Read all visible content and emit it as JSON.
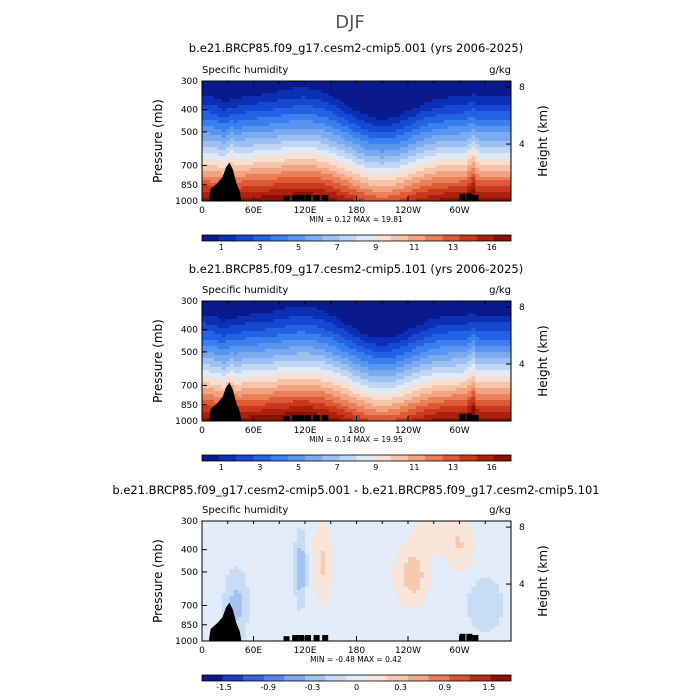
{
  "figure": {
    "title": "DJF"
  },
  "chart_data": [
    {
      "type": "heatmap",
      "title": "b.e21.BRCP85.f09_g17.cesm2-cmip5.001 (yrs 2006-2025)",
      "variable": "Specific humidity",
      "units": "g/kg",
      "xlabel": "",
      "ylabel": "Pressure (mb)",
      "ylabel_right": "Height (km)",
      "x_ticks": [
        "0",
        "60E",
        "120E",
        "180",
        "120W",
        "60W"
      ],
      "x_tick_values": [
        0,
        60,
        120,
        180,
        240,
        300
      ],
      "xlim": [
        0,
        360
      ],
      "y_ticks": [
        "300",
        "400",
        "500",
        "700",
        "850",
        "1000"
      ],
      "y_tick_values": [
        300,
        400,
        500,
        700,
        850,
        1000
      ],
      "ylim": [
        1000,
        300
      ],
      "y_scale": "log",
      "height_ticks": [
        "8",
        "4"
      ],
      "height_tick_values": [
        8,
        4
      ],
      "min_label": "MIN =",
      "min_value": "0.12",
      "max_label": "MAX =",
      "max_value": "19.81",
      "colorbar_labels": [
        "1",
        "3",
        "5",
        "7",
        "9",
        "11",
        "13",
        "16"
      ],
      "colorbar_colors": [
        "#0a1a8c",
        "#0c30b4",
        "#1748d2",
        "#2462e4",
        "#3a7ef0",
        "#5894f0",
        "#7aaaf0",
        "#9cc0f2",
        "#c0d6f4",
        "#e0eaf6",
        "#f7e0d2",
        "#f6c4aa",
        "#f2a480",
        "#ea8058",
        "#de5a36",
        "#c8381c",
        "#ac200c",
        "#8a1004"
      ]
    },
    {
      "type": "heatmap",
      "title": "b.e21.BRCP85.f09_g17.cesm2-cmip5.101 (yrs 2006-2025)",
      "variable": "Specific humidity",
      "units": "g/kg",
      "xlabel": "",
      "ylabel": "Pressure (mb)",
      "ylabel_right": "Height (km)",
      "x_ticks": [
        "0",
        "60E",
        "120E",
        "180",
        "120W",
        "60W"
      ],
      "x_tick_values": [
        0,
        60,
        120,
        180,
        240,
        300
      ],
      "xlim": [
        0,
        360
      ],
      "y_ticks": [
        "300",
        "400",
        "500",
        "700",
        "850",
        "1000"
      ],
      "y_tick_values": [
        300,
        400,
        500,
        700,
        850,
        1000
      ],
      "ylim": [
        1000,
        300
      ],
      "y_scale": "log",
      "height_ticks": [
        "8",
        "4"
      ],
      "height_tick_values": [
        8,
        4
      ],
      "min_label": "MIN =",
      "min_value": "0.14",
      "max_label": "MAX =",
      "max_value": "19.95",
      "colorbar_labels": [
        "1",
        "3",
        "5",
        "7",
        "9",
        "11",
        "13",
        "16"
      ],
      "colorbar_colors": [
        "#0a1a8c",
        "#0c30b4",
        "#1748d2",
        "#2462e4",
        "#3a7ef0",
        "#5894f0",
        "#7aaaf0",
        "#9cc0f2",
        "#c0d6f4",
        "#e0eaf6",
        "#f7e0d2",
        "#f6c4aa",
        "#f2a480",
        "#ea8058",
        "#de5a36",
        "#c8381c",
        "#ac200c",
        "#8a1004"
      ]
    },
    {
      "type": "heatmap",
      "title": "b.e21.BRCP85.f09_g17.cesm2-cmip5.001 - b.e21.BRCP85.f09_g17.cesm2-cmip5.101",
      "variable": "Specific humidity",
      "units": "g/kg",
      "xlabel": "",
      "ylabel": "Pressure (mb)",
      "ylabel_right": "Height (km)",
      "x_ticks": [
        "0",
        "60E",
        "120E",
        "180",
        "120W",
        "60W"
      ],
      "x_tick_values": [
        0,
        60,
        120,
        180,
        240,
        300
      ],
      "xlim": [
        0,
        360
      ],
      "y_ticks": [
        "300",
        "400",
        "500",
        "700",
        "850",
        "1000"
      ],
      "y_tick_values": [
        300,
        400,
        500,
        700,
        850,
        1000
      ],
      "ylim": [
        1000,
        300
      ],
      "y_scale": "log",
      "height_ticks": [
        "8",
        "4"
      ],
      "height_tick_values": [
        8,
        4
      ],
      "min_label": "MIN =",
      "min_value": "-0.48",
      "max_label": "MAX =",
      "max_value": "0.42",
      "colorbar_labels": [
        "-1.5",
        "-0.9",
        "-0.3",
        "0",
        "0.3",
        "0.9",
        "1.5"
      ],
      "colorbar_colors": [
        "#0a1a8c",
        "#1c3cc4",
        "#3464dc",
        "#5486ea",
        "#7aa6ee",
        "#a2c2f2",
        "#c8dcf6",
        "#e2ecf8",
        "#f8e4d8",
        "#f6cab0",
        "#f0a884",
        "#e67e5a",
        "#d65432",
        "#bc2e14",
        "#8a1004"
      ]
    }
  ]
}
